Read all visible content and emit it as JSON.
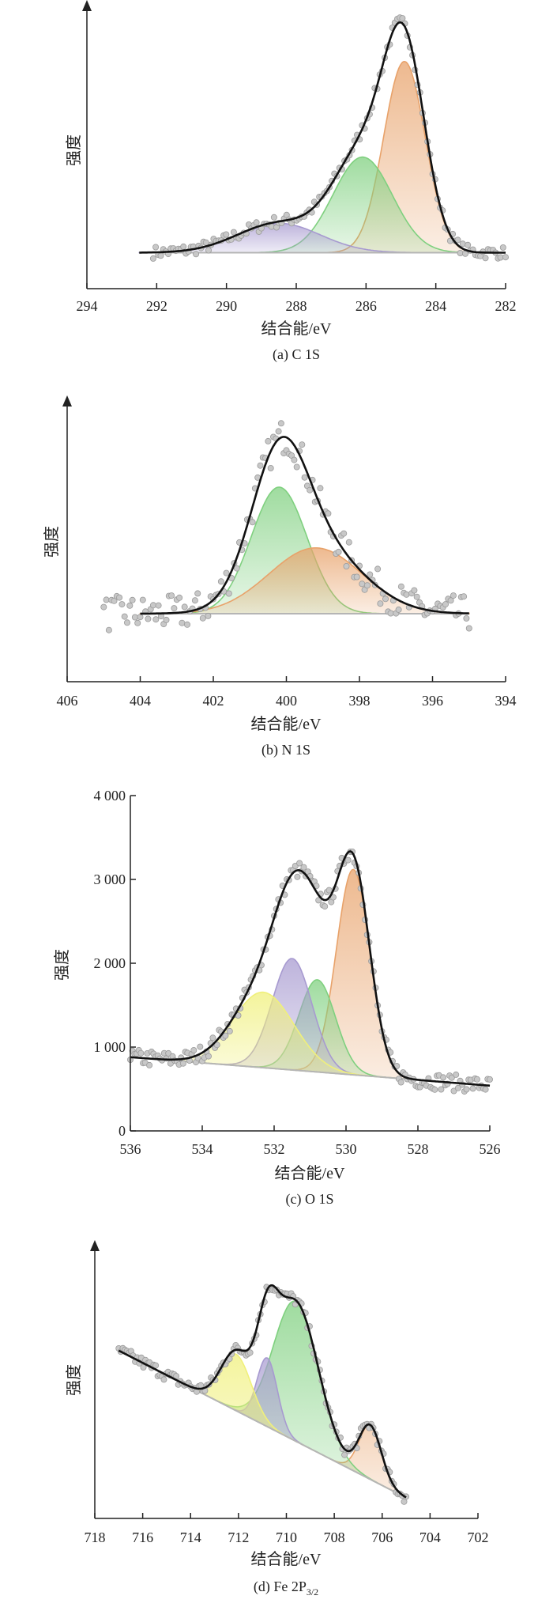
{
  "panels": [
    {
      "caption": "(a) C 1S",
      "xlabel": "结合能/eV",
      "ylabel": "强度",
      "xticks": [
        "294",
        "292",
        "290",
        "288",
        "286",
        "284",
        "282"
      ],
      "yticks": [],
      "colors": {
        "peak": [
          "#e8a26a",
          "#7fd07f",
          "#a79ad0"
        ]
      }
    },
    {
      "caption": "(b) N 1S",
      "xlabel": "结合能/eV",
      "ylabel": "强度",
      "xticks": [
        "406",
        "404",
        "402",
        "400",
        "398",
        "396",
        "394"
      ],
      "yticks": [],
      "colors": {
        "peak": [
          "#7fd07f",
          "#e8a26a"
        ]
      }
    },
    {
      "caption": "(c) O 1S",
      "xlabel": "结合能/eV",
      "ylabel": "强度",
      "xticks": [
        "536",
        "534",
        "532",
        "530",
        "528",
        "526"
      ],
      "yticks": [
        "0",
        "1 000",
        "2 000",
        "3 000",
        "4 000"
      ],
      "colors": {
        "peak": [
          "#e8a26a",
          "#7fd07f",
          "#a79ad0",
          "#f0f07a"
        ]
      }
    },
    {
      "caption_main": "(d) Fe 2P",
      "caption_sub": "3/2",
      "xlabel": "结合能/eV",
      "ylabel": "强度",
      "xticks": [
        "718",
        "716",
        "714",
        "712",
        "710",
        "708",
        "706",
        "704",
        "702"
      ],
      "yticks": [],
      "colors": {
        "peak": [
          "#e8a26a",
          "#7fd07f",
          "#a79ad0",
          "#f0f07a"
        ]
      }
    }
  ],
  "chart_data": [
    {
      "type": "line",
      "title": "(a) C 1S",
      "xlabel": "结合能/eV",
      "ylabel": "强度",
      "xlim": [
        294,
        282
      ],
      "x_reversed": true,
      "ylim": [
        0,
        1
      ],
      "background": 0.05,
      "fit_range": [
        292.5,
        282.0
      ],
      "peaks": [
        {
          "center": 284.9,
          "height": 0.78,
          "fwhm": 1.4,
          "color": "#e8a26a"
        },
        {
          "center": 286.1,
          "height": 0.39,
          "fwhm": 2.0,
          "color": "#7fd07f"
        },
        {
          "center": 288.5,
          "height": 0.12,
          "fwhm": 2.8,
          "color": "#a79ad0"
        }
      ],
      "envelope_peak": {
        "x": 285.0,
        "y": 0.87
      }
    },
    {
      "type": "line",
      "title": "(b) N 1S",
      "xlabel": "结合能/eV",
      "ylabel": "强度",
      "xlim": [
        406,
        394
      ],
      "x_reversed": true,
      "ylim": [
        0,
        1
      ],
      "background": 0.2,
      "fit_range": [
        404.0,
        395.0
      ],
      "peaks": [
        {
          "center": 400.2,
          "height": 0.5,
          "fwhm": 1.8,
          "color": "#7fd07f"
        },
        {
          "center": 399.2,
          "height": 0.26,
          "fwhm": 3.0,
          "color": "#e8a26a"
        }
      ],
      "envelope_peak": {
        "x": 400.1,
        "y": 0.74
      }
    },
    {
      "type": "line",
      "title": "(c) O 1S",
      "xlabel": "结合能/eV",
      "ylabel": "强度",
      "xlim": [
        536,
        526
      ],
      "x_reversed": true,
      "ylim": [
        0,
        4000
      ],
      "yticks": [
        0,
        1000,
        2000,
        3000,
        4000
      ],
      "background_high": 880,
      "background_low": 540,
      "fit_range": [
        536.0,
        526.0
      ],
      "peaks": [
        {
          "center": 529.8,
          "height": 2450,
          "fwhm": 1.1,
          "color": "#e8a26a"
        },
        {
          "center": 530.8,
          "height": 1100,
          "fwhm": 1.2,
          "color": "#7fd07f"
        },
        {
          "center": 531.5,
          "height": 1330,
          "fwhm": 1.3,
          "color": "#a79ad0"
        },
        {
          "center": 532.3,
          "height": 900,
          "fwhm": 2.0,
          "color": "#f0f07a"
        }
      ],
      "envelope_peak": {
        "x": 529.9,
        "y": 3420
      }
    },
    {
      "type": "line",
      "title": "(d) Fe 2P3/2",
      "xlabel": "结合能/eV",
      "ylabel": "强度",
      "xlim": [
        718,
        702
      ],
      "x_reversed": true,
      "ylim": [
        0,
        1
      ],
      "background_high": 0.62,
      "background_low": 0.02,
      "fit_range": [
        717.0,
        705.0
      ],
      "peaks": [
        {
          "center": 706.5,
          "height": 0.22,
          "fwhm": 1.1,
          "color": "#e8a26a"
        },
        {
          "center": 709.6,
          "height": 0.57,
          "fwhm": 2.2,
          "color": "#7fd07f"
        },
        {
          "center": 710.8,
          "height": 0.28,
          "fwhm": 1.0,
          "color": "#a79ad0"
        },
        {
          "center": 712.1,
          "height": 0.23,
          "fwhm": 1.5,
          "color": "#f0f07a"
        }
      ],
      "envelope_peak": {
        "x": 710.4,
        "y": 0.82
      }
    }
  ]
}
